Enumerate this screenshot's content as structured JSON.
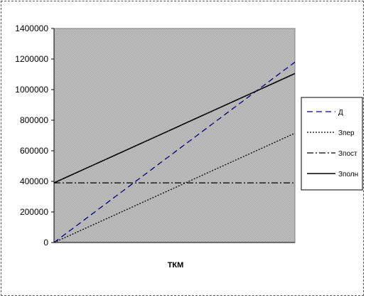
{
  "chart_data": {
    "type": "line",
    "title": "",
    "xlabel": "ТКМ",
    "ylabel": "",
    "ylim": [
      0,
      1400000
    ],
    "yticks": [
      0,
      200000,
      400000,
      600000,
      800000,
      1000000,
      1200000,
      1400000
    ],
    "ytick_labels": [
      "0",
      "200000",
      "400000",
      "600000",
      "800000",
      "1000000",
      "1200000",
      "1400000"
    ],
    "xlim": [
      0,
      1
    ],
    "grid": false,
    "legend_position": "right",
    "plot_background": "#c0c0c0",
    "series": [
      {
        "name": "Д",
        "color": "#000080",
        "dash": "dashed",
        "x": [
          0,
          1
        ],
        "y": [
          0,
          1180000
        ]
      },
      {
        "name": "Зпер",
        "color": "#000000",
        "dash": "dotted",
        "x": [
          0,
          1
        ],
        "y": [
          0,
          715000
        ]
      },
      {
        "name": "Зпост",
        "color": "#000000",
        "dash": "dashdot",
        "x": [
          0,
          1
        ],
        "y": [
          390000,
          390000
        ]
      },
      {
        "name": "Зполн",
        "color": "#000000",
        "dash": "solid",
        "x": [
          0,
          1
        ],
        "y": [
          390000,
          1105000
        ]
      }
    ]
  }
}
